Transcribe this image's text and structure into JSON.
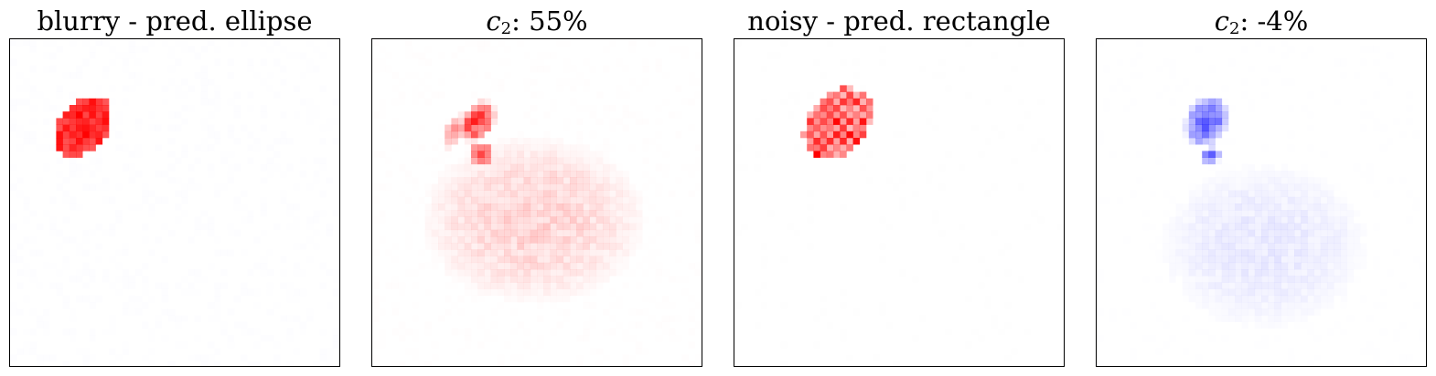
{
  "panels": [
    {
      "id": "blurry-ellipse",
      "title_text": "blurry - pred. ellipse",
      "color": "#ff0000",
      "noise_color": "#c8c8ff",
      "focus_level": 1.0,
      "background_level": 0.0
    },
    {
      "id": "c2-55",
      "title_prefix": "c",
      "title_sub": "2",
      "title_suffix": ": 55%",
      "color": "#ff0000",
      "noise_color": "#ffc8c8",
      "focus_level": 1.0,
      "background_level": 0.55
    },
    {
      "id": "noisy-rectangle",
      "title_text": "noisy - pred. rectangle",
      "color": "#ff0000",
      "noise_color": "#e6e6e6",
      "focus_level": 1.0,
      "background_level": 0.0
    },
    {
      "id": "c2-neg4",
      "title_prefix": "c",
      "title_sub": "2",
      "title_suffix": ": -4%",
      "color": "#0000ff",
      "noise_color": "#e0e0ff",
      "focus_level": 0.75,
      "background_level": 0.3
    }
  ]
}
